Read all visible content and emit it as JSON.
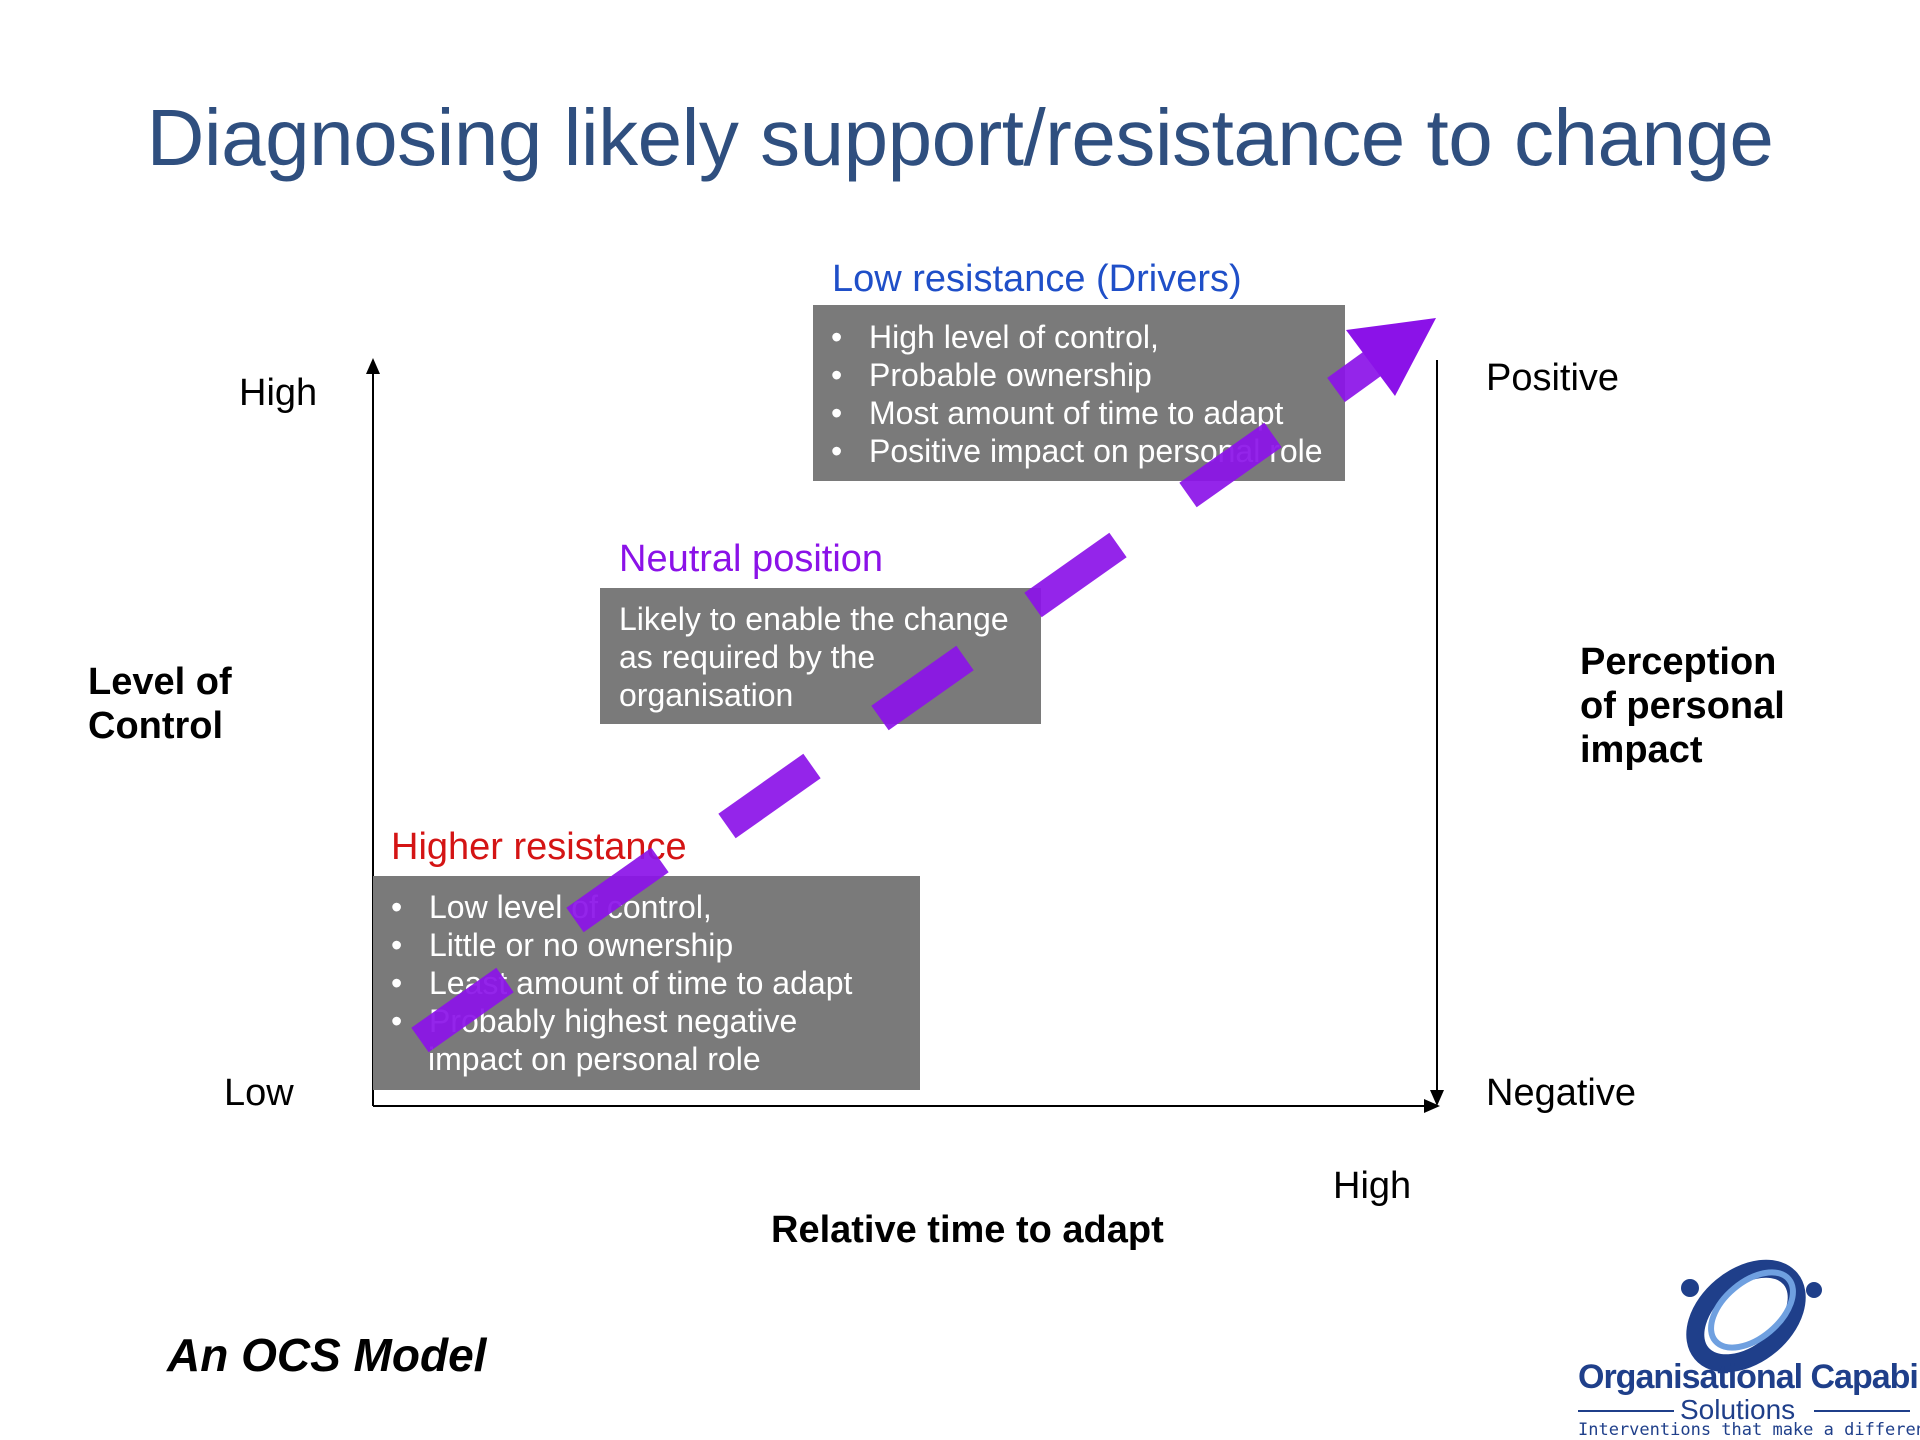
{
  "title": "Diagnosing likely support/resistance to change",
  "colors": {
    "title": "#2f4f7f",
    "low_resistance": "#1f4fc8",
    "neutral": "#8b12e8",
    "higher_resistance": "#d41414",
    "box_fill": "#7a7a7a",
    "arrow": "#8b12e8"
  },
  "categories": {
    "low": {
      "heading": "Low resistance (Drivers)",
      "items": [
        "High level of control,",
        "Probable ownership",
        "Most amount of time to adapt",
        "Positive impact on personal role"
      ]
    },
    "neutral": {
      "heading": "Neutral position",
      "text_lines": [
        "Likely to enable the change",
        "as required by the",
        "organisation"
      ]
    },
    "higher": {
      "heading": "Higher resistance",
      "items": [
        "Low level of control,",
        "Little or no ownership",
        "Least amount of time to adapt",
        "Probably highest negative",
        "impact on personal role"
      ]
    }
  },
  "axes": {
    "left_high": "High",
    "left_low": "Low",
    "left_title_line1": "Level of",
    "left_title_line2": "Control",
    "right_top": "Positive",
    "right_bottom": "Negative",
    "right_title_line1": "Perception",
    "right_title_line2": "of personal",
    "right_title_line3": "impact",
    "bottom_high": "High",
    "bottom_title": "Relative time to adapt"
  },
  "footer": {
    "model_label": "An OCS Model",
    "logo_name": "Organisational Capability",
    "logo_sub": "Solutions",
    "logo_tagline": "Interventions that make a difference"
  }
}
